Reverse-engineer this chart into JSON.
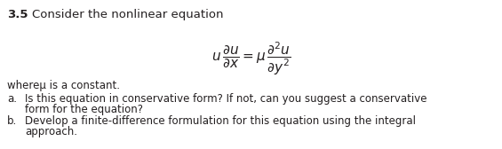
{
  "section_num": "3.5",
  "title": "Consider the nonlinear equation",
  "where_text": "whereμ is a constant.",
  "item_a_label": "a.",
  "item_a_line1": "Is this equation in conservative form? If not, can you suggest a conservative",
  "item_a_line2": "form for the equation?",
  "item_b_label": "b.",
  "item_b_line1": "Develop a finite-difference formulation for this equation using the integral",
  "item_b_line2": "approach.",
  "bg_color": "#ffffff",
  "text_color": "#231f20",
  "font_size_title": 9.5,
  "font_size_section": 9.5,
  "font_size_body": 8.5,
  "font_size_eq": 11
}
